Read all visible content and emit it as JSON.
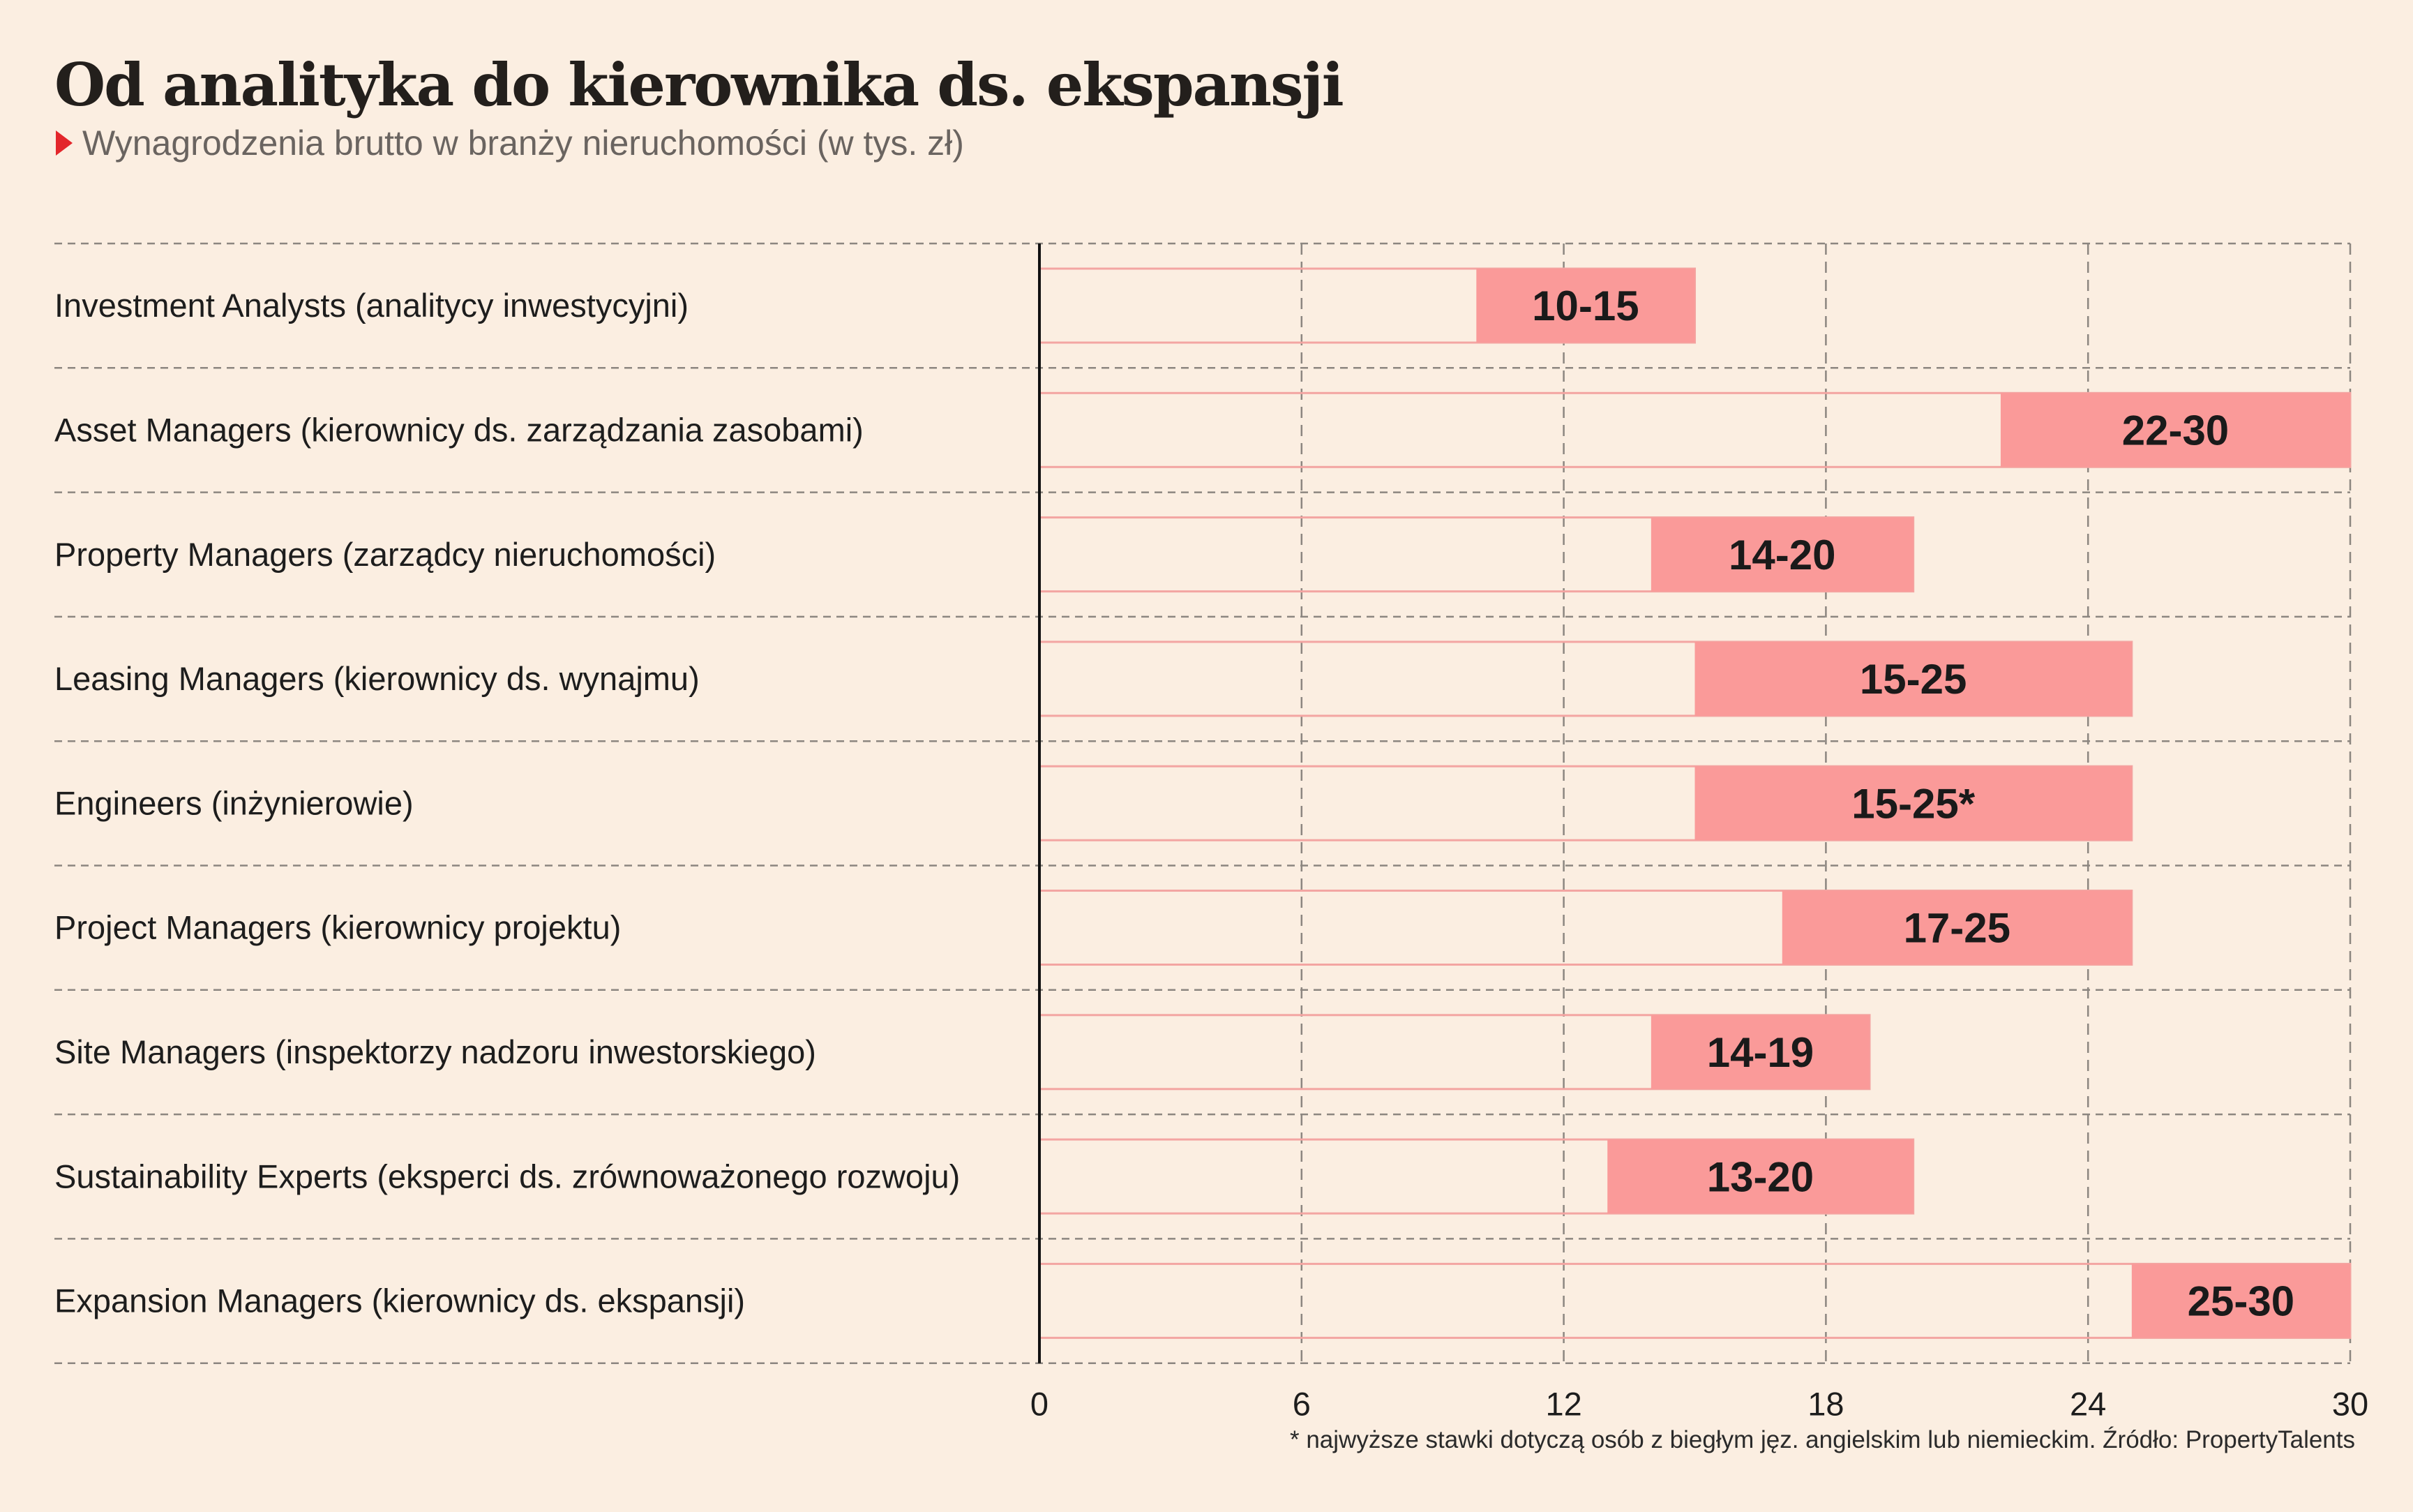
{
  "title": "Od analityka do kierownika ds. ekspansji",
  "subtitle": "Wynagrodzenia brutto w branży nieruchomości (w tys. zł)",
  "footnote": "* najwyższe stawki dotyczą osób z biegłym jęz. angielskim lub niemieckim. Źródło: PropertyTalents",
  "colors": {
    "background": "#fbeee1",
    "range_bar": "#fa9a99",
    "base_bar_outline": "#f3a5a2",
    "gridline": "#8c8680",
    "marker": "#e3262b"
  },
  "chart_data": {
    "type": "bar",
    "orientation": "horizontal",
    "stacked_range": true,
    "categories": [
      "Investment Analysts (analitycy inwestycyjni)",
      "Asset Managers (kierownicy ds. zarządzania zasobami)",
      "Property Managers (zarządcy nieruchomości)",
      "Leasing Managers (kierownicy ds. wynajmu)",
      "Engineers (inżynierowie)",
      "Project Managers (kierownicy projektu)",
      "Site Managers (inspektorzy nadzoru inwestorskiego)",
      "Sustainability Experts (eksperci ds. zrównoważonego rozwoju)",
      "Expansion Managers (kierownicy ds. ekspansji)"
    ],
    "ranges": [
      {
        "min": 10,
        "max": 15,
        "label": "10-15"
      },
      {
        "min": 22,
        "max": 30,
        "label": "22-30"
      },
      {
        "min": 14,
        "max": 20,
        "label": "14-20"
      },
      {
        "min": 15,
        "max": 25,
        "label": "15-25"
      },
      {
        "min": 15,
        "max": 25,
        "label": "15-25*"
      },
      {
        "min": 17,
        "max": 25,
        "label": "17-25"
      },
      {
        "min": 14,
        "max": 19,
        "label": "14-19"
      },
      {
        "min": 13,
        "max": 20,
        "label": "13-20"
      },
      {
        "min": 25,
        "max": 30,
        "label": "25-30"
      }
    ],
    "xlim": [
      0,
      30
    ],
    "xticks": [
      0,
      6,
      12,
      18,
      24,
      30
    ],
    "xtick_labels": [
      "0",
      "6",
      "12",
      "18",
      "24",
      "30"
    ],
    "grid": true,
    "legend": "none"
  }
}
